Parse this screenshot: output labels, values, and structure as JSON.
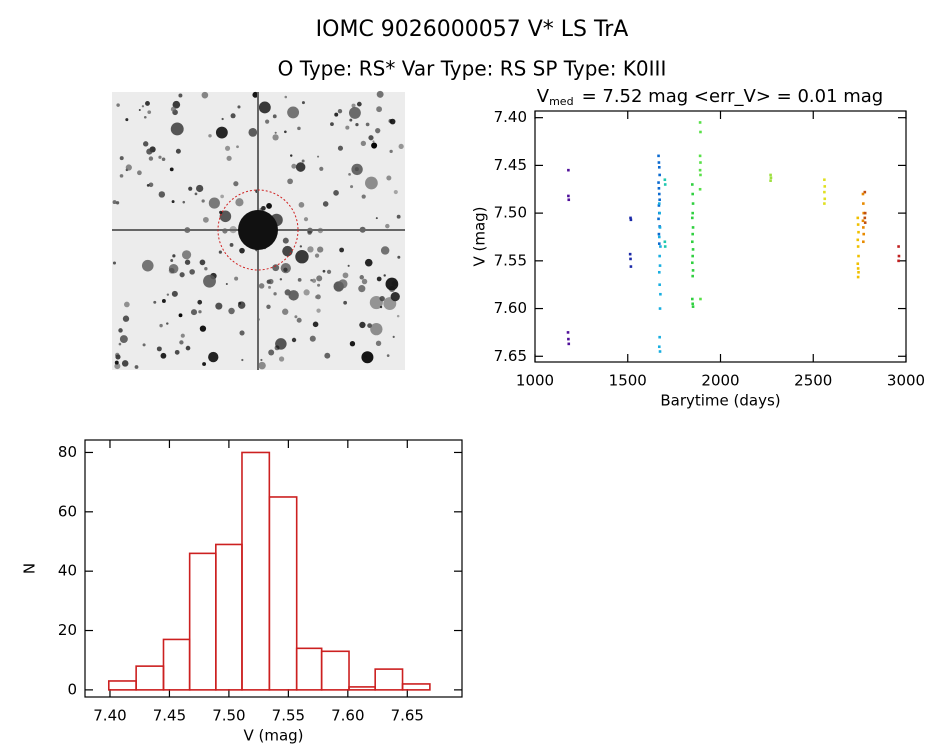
{
  "header": {
    "title": "IOMC 9026000057   V* LS TrA",
    "subtitle": "O Type: RS*  Var Type: RS  SP Type: K0III"
  },
  "chart_data": [
    {
      "type": "scatter",
      "title": {
        "main": "V",
        "sub": "med",
        "rest": "= 7.52 mag <err_V> = 0.01 mag"
      },
      "x_label": "Barytime (days)",
      "y_label": "V (mag)",
      "xlim": [
        1000,
        3000
      ],
      "xticks": [
        1000,
        1500,
        2000,
        2500,
        3000
      ],
      "ylim": [
        7.656,
        7.393
      ],
      "yticks": [
        {
          "value": 7.4,
          "label": "7.40"
        },
        7.45,
        {
          "value": 7.5,
          "label": "7.50"
        },
        7.55,
        {
          "value": 7.6,
          "label": "7.60"
        },
        7.65
      ],
      "series": [
        {
          "color": "#50109a",
          "x": [
            1180,
            1180,
            1182,
            1178,
            1180,
            1182
          ],
          "y": [
            7.455,
            7.482,
            7.486,
            7.625,
            7.632,
            7.637
          ]
        },
        {
          "color": "#1c2aa8",
          "x": [
            1515,
            1517,
            1513,
            1515,
            1517
          ],
          "y": [
            7.505,
            7.507,
            7.543,
            7.548,
            7.556
          ]
        },
        {
          "color": "#0a6ad0",
          "x": [
            1666,
            1668,
            1670,
            1672,
            1666,
            1668,
            1670,
            1672,
            1668,
            1670,
            1666,
            1672,
            1668,
            1670
          ],
          "y": [
            7.44,
            7.447,
            7.452,
            7.46,
            7.468,
            7.474,
            7.48,
            7.486,
            7.492,
            7.5,
            7.506,
            7.514,
            7.522,
            7.532
          ]
        },
        {
          "color": "#18aee0",
          "x": [
            1670,
            1672,
            1674,
            1670,
            1676,
            1672,
            1674,
            1670,
            1672,
            1676,
            1674,
            1672,
            1670,
            1674
          ],
          "y": [
            7.49,
            7.5,
            7.515,
            7.525,
            7.535,
            7.545,
            7.555,
            7.562,
            7.575,
            7.585,
            7.6,
            7.63,
            7.64,
            7.645
          ]
        },
        {
          "color": "#20c8b0",
          "x": [
            1700,
            1702,
            1700,
            1702
          ],
          "y": [
            7.465,
            7.47,
            7.53,
            7.535
          ]
        },
        {
          "color": "#30d040",
          "x": [
            1848,
            1850,
            1852,
            1850,
            1848,
            1852,
            1850,
            1848,
            1852,
            1850,
            1848,
            1852,
            1850,
            1848,
            1850,
            1852
          ],
          "y": [
            7.47,
            7.48,
            7.49,
            7.5,
            7.505,
            7.515,
            7.522,
            7.53,
            7.538,
            7.545,
            7.552,
            7.56,
            7.566,
            7.59,
            7.595,
            7.598
          ]
        },
        {
          "color": "#58e048",
          "x": [
            1890,
            1892,
            1890,
            1892,
            1890,
            1892,
            1890,
            1892
          ],
          "y": [
            7.405,
            7.415,
            7.44,
            7.447,
            7.455,
            7.46,
            7.475,
            7.59
          ]
        },
        {
          "color": "#9ee040",
          "x": [
            2270,
            2272,
            2270
          ],
          "y": [
            7.46,
            7.463,
            7.466
          ]
        },
        {
          "color": "#e0e020",
          "x": [
            2560,
            2562,
            2560,
            2562,
            2560
          ],
          "y": [
            7.465,
            7.472,
            7.478,
            7.485,
            7.49
          ]
        },
        {
          "color": "#f0c000",
          "x": [
            2740,
            2742,
            2744,
            2740,
            2742,
            2744,
            2740,
            2742,
            2744,
            2742
          ],
          "y": [
            7.505,
            7.512,
            7.52,
            7.528,
            7.535,
            7.545,
            7.553,
            7.558,
            7.562,
            7.567
          ]
        },
        {
          "color": "#e88a00",
          "x": [
            2768,
            2770,
            2772,
            2768,
            2770,
            2772,
            2770
          ],
          "y": [
            7.48,
            7.49,
            7.5,
            7.508,
            7.515,
            7.522,
            7.53
          ]
        },
        {
          "color": "#c05010",
          "x": [
            2778,
            2780,
            2778,
            2780
          ],
          "y": [
            7.478,
            7.5,
            7.505,
            7.51
          ]
        },
        {
          "color": "#c02020",
          "x": [
            2960,
            2962,
            2960
          ],
          "y": [
            7.535,
            7.545,
            7.55
          ]
        }
      ]
    },
    {
      "type": "histogram",
      "x_label": "V (mag)",
      "y_label": "N",
      "color": "#cc2020",
      "xlim": [
        7.379,
        7.696
      ],
      "xticks": [
        {
          "value": 7.4,
          "label": "7.40"
        },
        7.45,
        {
          "value": 7.5,
          "label": "7.50"
        },
        7.55,
        {
          "value": 7.6,
          "label": "7.60"
        },
        7.65
      ],
      "ylim": [
        -2.4,
        84.2
      ],
      "yticks": [
        0,
        20,
        40,
        60,
        80
      ],
      "bins": [
        7.399,
        7.422,
        7.445,
        7.467,
        7.489,
        7.511,
        7.534,
        7.557,
        7.578,
        7.601,
        7.623,
        7.646,
        7.669
      ],
      "values": [
        3,
        8,
        17,
        46,
        49,
        80,
        65,
        14,
        13,
        1,
        7,
        2
      ]
    }
  ]
}
